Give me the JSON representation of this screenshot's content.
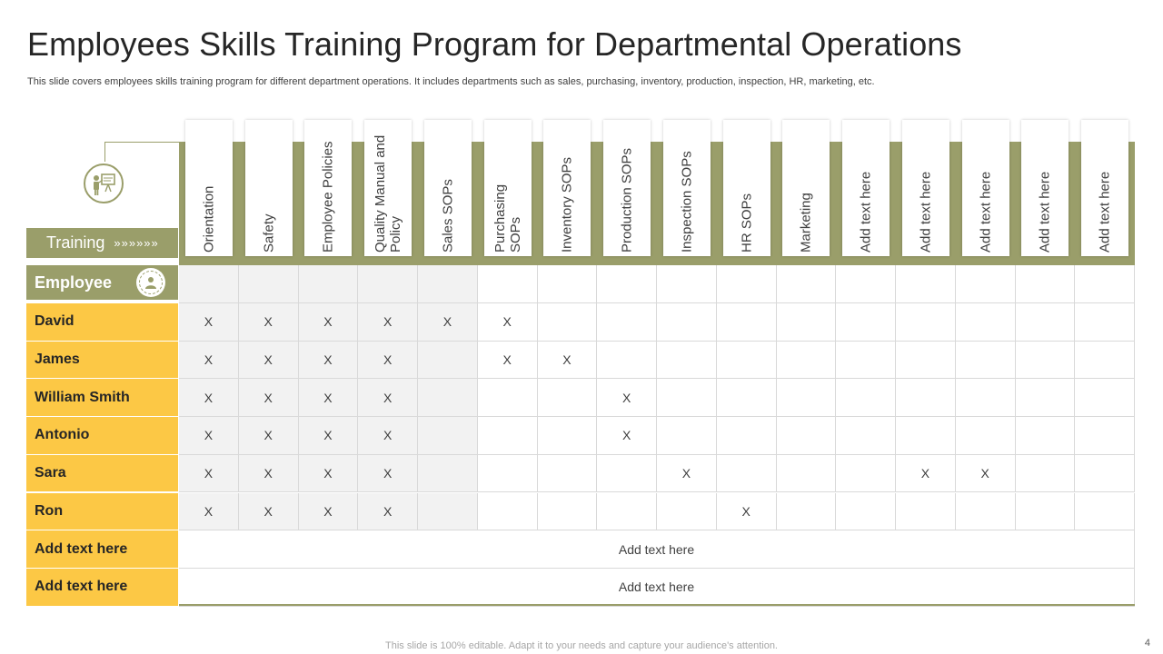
{
  "title": "Employees Skills Training Program for Departmental Operations",
  "subtitle": "This slide covers employees skills training program for different department operations. It includes departments such as sales, purchasing, inventory, production, inspection, HR, marketing, etc.",
  "training_label": "Training",
  "training_arrows": "»»»»»»",
  "employee_label": "Employee",
  "columns": [
    "Orientation",
    "Safety",
    "Employee Policies",
    "Quality Manual and\nPolicy",
    "Sales SOPs",
    "Purchasing\nSOPs",
    "Inventory  SOPs",
    "Production SOPs",
    "Inspection  SOPs",
    "HR SOPs",
    "Marketing",
    "Add text here",
    "Add text here",
    "Add text here",
    "Add text here",
    "Add text here"
  ],
  "rows": [
    {
      "name": "David",
      "marks": [
        0,
        1,
        2,
        3,
        4,
        5
      ]
    },
    {
      "name": "James",
      "marks": [
        0,
        1,
        2,
        3,
        5,
        6
      ]
    },
    {
      "name": "William  Smith",
      "marks": [
        0,
        1,
        2,
        3,
        7
      ]
    },
    {
      "name": "Antonio",
      "marks": [
        0,
        1,
        2,
        3,
        7
      ]
    },
    {
      "name": "Sara",
      "marks": [
        0,
        1,
        2,
        3,
        8,
        12,
        13
      ]
    },
    {
      "name": "Ron",
      "marks": [
        0,
        1,
        2,
        3,
        9
      ]
    }
  ],
  "mark_symbol": "X",
  "extra_rows": [
    {
      "name": "Add text here",
      "content": "Add text here"
    },
    {
      "name": "Add text here",
      "content": "Add text here"
    }
  ],
  "footer": "This slide is 100% editable. Adapt it to your needs and capture your audience's attention.",
  "page_number": "4",
  "colors": {
    "olive": "#9a9e6a",
    "yellow": "#fcc845",
    "grey_cell": "#f2f2f2"
  }
}
